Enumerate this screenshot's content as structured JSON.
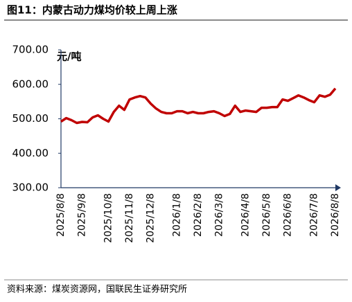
{
  "chart_data": {
    "type": "line",
    "title": "图11：内蒙古动力煤均价较上周上涨",
    "y_axis_label": "元/吨",
    "source": "资料来源：煤炭资源网，国联民生证券研究所",
    "categories": [
      "2025/8/8",
      null,
      null,
      null,
      "2025/9/8",
      null,
      null,
      null,
      null,
      "2025/10/8",
      null,
      null,
      null,
      "2025/11/8",
      null,
      null,
      null,
      "2025/12/8",
      null,
      null,
      null,
      null,
      "2026/1/8",
      null,
      null,
      null,
      "2026/2/8",
      null,
      null,
      null,
      "2026/3/8",
      null,
      null,
      null,
      null,
      "2026/4/8",
      null,
      null,
      null,
      "2026/5/8",
      null,
      null,
      null,
      "2026/6/8",
      null,
      null,
      null,
      null,
      "2026/7/8",
      null,
      null,
      null,
      "2026/8/8"
    ],
    "series": [
      {
        "name": "内蒙古动力煤均价",
        "color": "#c00000",
        "values": [
          492,
          502,
          496,
          488,
          491,
          490,
          504,
          510,
          500,
          492,
          520,
          538,
          526,
          556,
          562,
          566,
          562,
          544,
          530,
          520,
          516,
          516,
          522,
          522,
          516,
          520,
          516,
          516,
          520,
          522,
          516,
          508,
          514,
          538,
          520,
          524,
          522,
          520,
          532,
          532,
          534,
          534,
          556,
          552,
          560,
          568,
          562,
          554,
          548,
          568,
          564,
          570,
          588
        ]
      }
    ],
    "ylim": [
      300,
      700
    ],
    "yticks": [
      {
        "value": 300,
        "label": "300.00"
      },
      {
        "value": 400,
        "label": "400.00"
      },
      {
        "value": 500,
        "label": "500.00"
      },
      {
        "value": 600,
        "label": "600.00"
      },
      {
        "value": 700,
        "label": "700.00"
      }
    ],
    "grid": false
  }
}
